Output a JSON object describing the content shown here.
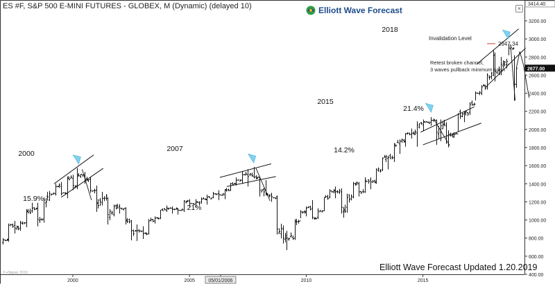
{
  "header": {
    "title": "ES #F, S&P 500 E-MINI FUTURES - GLOBEX, M (Dynamic) (delayed 10)",
    "logo_text": "Elliott Wave Forecast",
    "close_glyph": "×"
  },
  "footer": {
    "updated_text": "Elliott Wave Forecast Updated 1.20.2019",
    "watermark": "© eSignal, 2019"
  },
  "chart_data": {
    "type": "bar",
    "x": [
      "1997-01",
      "1997-04",
      "1997-07",
      "1997-10",
      "1998-01",
      "1998-04",
      "1998-07",
      "1998-10",
      "1999-01",
      "1999-04",
      "1999-07",
      "1999-10",
      "2000-01",
      "2000-03",
      "2000-07",
      "2000-10",
      "2001-01",
      "2001-04",
      "2001-07",
      "2001-10",
      "2002-01",
      "2002-04",
      "2002-07",
      "2002-10",
      "2003-01",
      "2003-04",
      "2003-07",
      "2003-10",
      "2004-01",
      "2004-04",
      "2004-07",
      "2004-10",
      "2005-01",
      "2005-04",
      "2005-07",
      "2005-10",
      "2006-01",
      "2006-04",
      "2006-07",
      "2006-10",
      "2007-01",
      "2007-04",
      "2007-07",
      "2007-10",
      "2008-01",
      "2008-04",
      "2008-07",
      "2008-10",
      "2009-01",
      "2009-03",
      "2009-07",
      "2009-10",
      "2010-01",
      "2010-04",
      "2010-07",
      "2010-10",
      "2011-01",
      "2011-04",
      "2011-07",
      "2011-10",
      "2012-01",
      "2012-04",
      "2012-07",
      "2012-10",
      "2013-01",
      "2013-04",
      "2013-07",
      "2013-10",
      "2014-01",
      "2014-04",
      "2014-07",
      "2014-10",
      "2015-01",
      "2015-05",
      "2015-08",
      "2015-10",
      "2016-01",
      "2016-02",
      "2016-07",
      "2016-10",
      "2017-01",
      "2017-04",
      "2017-07",
      "2017-10",
      "2018-01",
      "2018-02",
      "2018-05",
      "2018-09",
      "2018-12",
      "2019-01"
    ],
    "values": [
      {
        "o": 750,
        "h": 800,
        "l": 730,
        "c": 780
      },
      {
        "o": 780,
        "h": 960,
        "l": 760,
        "c": 940
      },
      {
        "o": 940,
        "h": 990,
        "l": 850,
        "c": 910
      },
      {
        "o": 910,
        "h": 990,
        "l": 880,
        "c": 970
      },
      {
        "o": 970,
        "h": 1120,
        "l": 920,
        "c": 1100
      },
      {
        "o": 1100,
        "h": 1190,
        "l": 1080,
        "c": 1130
      },
      {
        "o": 1130,
        "h": 1190,
        "l": 930,
        "c": 1010
      },
      {
        "o": 1010,
        "h": 1250,
        "l": 970,
        "c": 1220
      },
      {
        "o": 1220,
        "h": 1320,
        "l": 1210,
        "c": 1290
      },
      {
        "o": 1290,
        "h": 1400,
        "l": 1270,
        "c": 1370
      },
      {
        "o": 1370,
        "h": 1420,
        "l": 1270,
        "c": 1290
      },
      {
        "o": 1290,
        "h": 1480,
        "l": 1240,
        "c": 1460
      },
      {
        "o": 1460,
        "h": 1500,
        "l": 1330,
        "c": 1380
      },
      {
        "o": 1380,
        "h": 1575,
        "l": 1340,
        "c": 1500
      },
      {
        "o": 1500,
        "h": 1530,
        "l": 1400,
        "c": 1450
      },
      {
        "o": 1450,
        "h": 1480,
        "l": 1300,
        "c": 1330
      },
      {
        "o": 1330,
        "h": 1380,
        "l": 1090,
        "c": 1190
      },
      {
        "o": 1190,
        "h": 1310,
        "l": 1160,
        "c": 1240
      },
      {
        "o": 1240,
        "h": 1250,
        "l": 950,
        "c": 1060
      },
      {
        "o": 1060,
        "h": 1170,
        "l": 1040,
        "c": 1150
      },
      {
        "o": 1150,
        "h": 1175,
        "l": 1070,
        "c": 1130
      },
      {
        "o": 1130,
        "h": 1140,
        "l": 950,
        "c": 990
      },
      {
        "o": 990,
        "h": 1000,
        "l": 775,
        "c": 880
      },
      {
        "o": 880,
        "h": 950,
        "l": 768,
        "c": 880
      },
      {
        "o": 880,
        "h": 930,
        "l": 790,
        "c": 850
      },
      {
        "o": 850,
        "h": 1010,
        "l": 840,
        "c": 990
      },
      {
        "o": 990,
        "h": 1040,
        "l": 960,
        "c": 1020
      },
      {
        "o": 1020,
        "h": 1110,
        "l": 1010,
        "c": 1110
      },
      {
        "o": 1110,
        "h": 1160,
        "l": 1090,
        "c": 1130
      },
      {
        "o": 1130,
        "h": 1150,
        "l": 1070,
        "c": 1120
      },
      {
        "o": 1120,
        "h": 1130,
        "l": 1060,
        "c": 1110
      },
      {
        "o": 1110,
        "h": 1220,
        "l": 1090,
        "c": 1210
      },
      {
        "o": 1210,
        "h": 1230,
        "l": 1140,
        "c": 1180
      },
      {
        "o": 1180,
        "h": 1230,
        "l": 1140,
        "c": 1200
      },
      {
        "o": 1200,
        "h": 1250,
        "l": 1180,
        "c": 1230
      },
      {
        "o": 1230,
        "h": 1280,
        "l": 1170,
        "c": 1250
      },
      {
        "o": 1250,
        "h": 1310,
        "l": 1240,
        "c": 1290
      },
      {
        "o": 1290,
        "h": 1330,
        "l": 1220,
        "c": 1280
      },
      {
        "o": 1280,
        "h": 1340,
        "l": 1230,
        "c": 1330
      },
      {
        "o": 1330,
        "h": 1410,
        "l": 1320,
        "c": 1400
      },
      {
        "o": 1400,
        "h": 1470,
        "l": 1380,
        "c": 1440
      },
      {
        "o": 1440,
        "h": 1540,
        "l": 1400,
        "c": 1500
      },
      {
        "o": 1500,
        "h": 1560,
        "l": 1370,
        "c": 1480
      },
      {
        "o": 1480,
        "h": 1586,
        "l": 1460,
        "c": 1470
      },
      {
        "o": 1470,
        "h": 1480,
        "l": 1260,
        "c": 1330
      },
      {
        "o": 1330,
        "h": 1440,
        "l": 1270,
        "c": 1280
      },
      {
        "o": 1280,
        "h": 1300,
        "l": 1200,
        "c": 1260
      },
      {
        "o": 1260,
        "h": 1270,
        "l": 840,
        "c": 900
      },
      {
        "o": 900,
        "h": 940,
        "l": 740,
        "c": 800
      },
      {
        "o": 800,
        "h": 880,
        "l": 667,
        "c": 800
      },
      {
        "o": 800,
        "h": 1010,
        "l": 780,
        "c": 990
      },
      {
        "o": 990,
        "h": 1110,
        "l": 1020,
        "c": 1090
      },
      {
        "o": 1090,
        "h": 1150,
        "l": 1040,
        "c": 1130
      },
      {
        "o": 1130,
        "h": 1220,
        "l": 1010,
        "c": 1030
      },
      {
        "o": 1030,
        "h": 1130,
        "l": 1010,
        "c": 1100
      },
      {
        "o": 1100,
        "h": 1250,
        "l": 1100,
        "c": 1250
      },
      {
        "o": 1250,
        "h": 1340,
        "l": 1240,
        "c": 1320
      },
      {
        "o": 1320,
        "h": 1370,
        "l": 1240,
        "c": 1310
      },
      {
        "o": 1310,
        "h": 1350,
        "l": 1070,
        "c": 1140
      },
      {
        "o": 1140,
        "h": 1290,
        "l": 1080,
        "c": 1250
      },
      {
        "o": 1250,
        "h": 1420,
        "l": 1240,
        "c": 1400
      },
      {
        "o": 1400,
        "h": 1420,
        "l": 1260,
        "c": 1310
      },
      {
        "o": 1310,
        "h": 1470,
        "l": 1300,
        "c": 1440
      },
      {
        "o": 1440,
        "h": 1470,
        "l": 1340,
        "c": 1420
      },
      {
        "o": 1420,
        "h": 1570,
        "l": 1400,
        "c": 1560
      },
      {
        "o": 1560,
        "h": 1690,
        "l": 1540,
        "c": 1680
      },
      {
        "o": 1680,
        "h": 1710,
        "l": 1560,
        "c": 1690
      },
      {
        "o": 1690,
        "h": 1850,
        "l": 1640,
        "c": 1840
      },
      {
        "o": 1840,
        "h": 1890,
        "l": 1730,
        "c": 1870
      },
      {
        "o": 1870,
        "h": 1960,
        "l": 1810,
        "c": 1950
      },
      {
        "o": 1950,
        "h": 2010,
        "l": 1900,
        "c": 1960
      },
      {
        "o": 1960,
        "h": 2090,
        "l": 1810,
        "c": 2050
      },
      {
        "o": 2050,
        "h": 2110,
        "l": 1980,
        "c": 2080
      },
      {
        "o": 2080,
        "h": 2137,
        "l": 2040,
        "c": 2100
      },
      {
        "o": 2100,
        "h": 2110,
        "l": 1830,
        "c": 1970
      },
      {
        "o": 1970,
        "h": 2110,
        "l": 1870,
        "c": 2040
      },
      {
        "o": 2040,
        "h": 2080,
        "l": 1840,
        "c": 1930
      },
      {
        "o": 1930,
        "h": 1990,
        "l": 1802,
        "c": 1950
      },
      {
        "o": 1950,
        "h": 2180,
        "l": 1980,
        "c": 2170
      },
      {
        "o": 2170,
        "h": 2200,
        "l": 2080,
        "c": 2190
      },
      {
        "o": 2190,
        "h": 2300,
        "l": 2160,
        "c": 2280
      },
      {
        "o": 2280,
        "h": 2420,
        "l": 2320,
        "c": 2400
      },
      {
        "o": 2400,
        "h": 2490,
        "l": 2380,
        "c": 2470
      },
      {
        "o": 2470,
        "h": 2620,
        "l": 2440,
        "c": 2600
      },
      {
        "o": 2600,
        "h": 2880,
        "l": 2590,
        "c": 2820
      },
      {
        "o": 2820,
        "h": 2850,
        "l": 2530,
        "c": 2640
      },
      {
        "o": 2640,
        "h": 2800,
        "l": 2600,
        "c": 2720
      },
      {
        "o": 2720,
        "h": 2947,
        "l": 2820,
        "c": 2900
      },
      {
        "o": 2900,
        "h": 2820,
        "l": 2317,
        "c": 2500
      },
      {
        "o": 2500,
        "h": 2680,
        "l": 2460,
        "c": 2677
      }
    ],
    "y_axis": {
      "ticks": [
        "3200.00",
        "3000.00",
        "2800.00",
        "2600.00",
        "2400.00",
        "2200.00",
        "2000.00",
        "1800.00",
        "1600.00",
        "1400.00",
        "1200.00",
        "1000.00",
        "800.00",
        "600.00",
        "400.00"
      ],
      "range": [
        400,
        3414.4
      ],
      "top_label": "3414.40",
      "last_price_label": "2677.00"
    },
    "x_axis": {
      "tick_labels": [
        "2000",
        "2005",
        "05/01/2006",
        "2010",
        "2015"
      ]
    },
    "invalidation": {
      "label": "Invalidation Level",
      "value_label": "2947.34",
      "value": 2947.34,
      "color": "#c0392b"
    },
    "annotations": [
      {
        "id": "2000",
        "label": "2000",
        "peak_date": "2000-03",
        "peak": 1575,
        "pct_label": "15.9%"
      },
      {
        "id": "2007",
        "label": "2007",
        "peak_date": "2007-10",
        "peak": 1586,
        "pct_label": "21%"
      },
      {
        "id": "2015",
        "label": "2015",
        "peak_date": "2015-05",
        "peak": 2137,
        "pct_label": "14.2%"
      },
      {
        "id": "2018",
        "label": "2018",
        "peak_date": "2018-09",
        "peak": 2947,
        "pct_label": "21.4%"
      }
    ],
    "note": [
      "Retest broken channel,",
      "3 waves pullback minimum soon"
    ],
    "marker_color": "#7fd3f0",
    "grid": false,
    "legend": "none"
  }
}
